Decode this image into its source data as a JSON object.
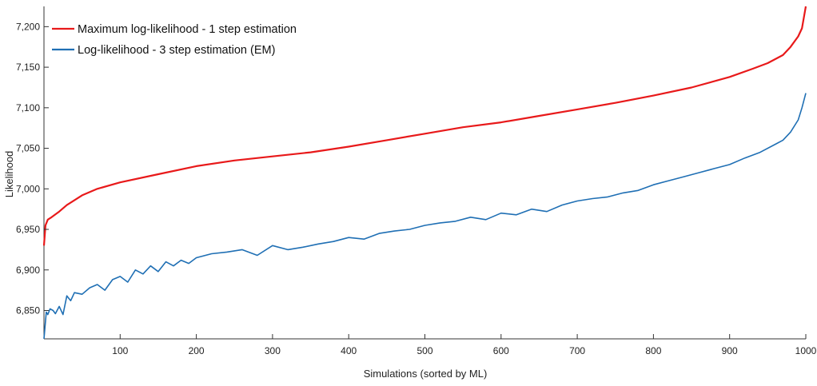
{
  "chart_data": {
    "type": "line",
    "title": "",
    "xlabel": "Simulations (sorted by ML)",
    "ylabel": "Likelihood",
    "xlim": [
      0,
      1000
    ],
    "ylim": [
      6815,
      7225
    ],
    "xticks": [
      100,
      200,
      300,
      400,
      500,
      600,
      700,
      800,
      900,
      1000
    ],
    "xtick_labels": [
      "100",
      "200",
      "300",
      "400",
      "500",
      "600",
      "700",
      "800",
      "900",
      "1000"
    ],
    "yticks": [
      6850,
      6900,
      6950,
      7000,
      7050,
      7100,
      7150,
      7200
    ],
    "ytick_labels": [
      "6,850",
      "6,900",
      "6,950",
      "7,000",
      "7,050",
      "7,100",
      "7,150",
      "7,200"
    ],
    "grid": false,
    "legend_position": "top-left",
    "series": [
      {
        "name": "Maximum log-likelihood - 1 step estimation",
        "color": "#e8191a",
        "x": [
          0,
          2,
          5,
          10,
          20,
          30,
          50,
          70,
          100,
          150,
          200,
          250,
          300,
          350,
          400,
          450,
          500,
          550,
          600,
          650,
          700,
          750,
          800,
          850,
          900,
          930,
          950,
          970,
          980,
          990,
          995,
          1000
        ],
        "y": [
          6930,
          6955,
          6962,
          6965,
          6972,
          6980,
          6992,
          7000,
          7008,
          7018,
          7028,
          7035,
          7040,
          7045,
          7052,
          7060,
          7068,
          7076,
          7082,
          7090,
          7098,
          7106,
          7115,
          7125,
          7138,
          7148,
          7155,
          7165,
          7175,
          7188,
          7198,
          7225
        ]
      },
      {
        "name": "Log-likelihood - 3 step estimation (EM)",
        "color": "#1f6fb4",
        "x": [
          0,
          3,
          5,
          8,
          12,
          15,
          20,
          25,
          30,
          35,
          40,
          50,
          60,
          70,
          80,
          90,
          100,
          110,
          120,
          130,
          140,
          150,
          160,
          170,
          180,
          190,
          200,
          220,
          240,
          260,
          280,
          300,
          320,
          340,
          360,
          380,
          400,
          420,
          440,
          460,
          480,
          500,
          520,
          540,
          560,
          580,
          600,
          620,
          640,
          660,
          680,
          700,
          720,
          740,
          760,
          780,
          800,
          820,
          840,
          860,
          880,
          900,
          920,
          940,
          960,
          970,
          980,
          990,
          995,
          1000
        ],
        "y": [
          6815,
          6848,
          6845,
          6852,
          6850,
          6846,
          6855,
          6845,
          6868,
          6862,
          6872,
          6870,
          6878,
          6882,
          6875,
          6888,
          6892,
          6885,
          6900,
          6895,
          6905,
          6898,
          6910,
          6905,
          6912,
          6908,
          6915,
          6920,
          6922,
          6925,
          6918,
          6930,
          6925,
          6928,
          6932,
          6935,
          6940,
          6938,
          6945,
          6948,
          6950,
          6955,
          6958,
          6960,
          6965,
          6962,
          6970,
          6968,
          6975,
          6972,
          6980,
          6985,
          6988,
          6990,
          6995,
          6998,
          7005,
          7010,
          7015,
          7020,
          7025,
          7030,
          7038,
          7045,
          7055,
          7060,
          7070,
          7085,
          7100,
          7118
        ]
      }
    ]
  }
}
